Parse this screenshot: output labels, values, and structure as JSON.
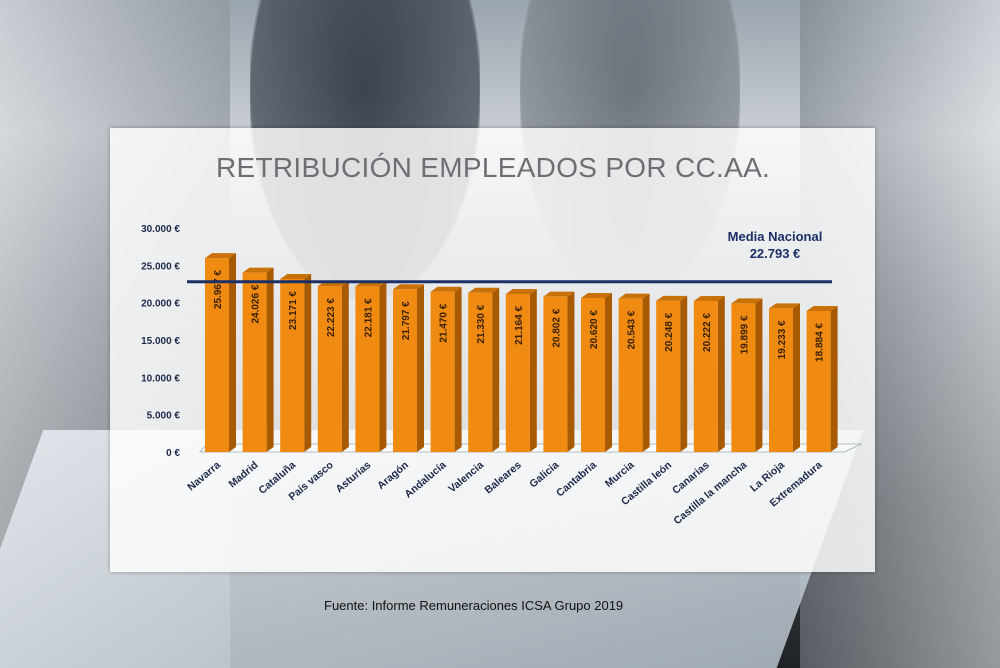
{
  "chart_data": {
    "type": "bar",
    "title": "RETRIBUCIÓN EMPLEADOS POR CC.AA.",
    "categories": [
      "Navarra",
      "Madrid",
      "Cataluña",
      "País vasco",
      "Asturias",
      "Aragón",
      "Andalucía",
      "Valencia",
      "Baleares",
      "Galicia",
      "Cantabria",
      "Murcia",
      "Castilla león",
      "Canarias",
      "Castilla la mancha",
      "La Rioja",
      "Extremadura"
    ],
    "values": [
      25967,
      24026,
      23171,
      22223,
      22181,
      21797,
      21470,
      21330,
      21164,
      20802,
      20620,
      20543,
      20248,
      20222,
      19899,
      19233,
      18884
    ],
    "value_labels": [
      "25.967 €",
      "24.026 €",
      "23.171 €",
      "22.223 €",
      "22.181 €",
      "21.797 €",
      "21.470 €",
      "21.330 €",
      "21.164 €",
      "20.802 €",
      "20.620 €",
      "20.543 €",
      "20.248 €",
      "20.222 €",
      "19.899 €",
      "19.233 €",
      "18.884 €"
    ],
    "ylim": [
      0,
      30000
    ],
    "yticks": [
      0,
      5000,
      10000,
      15000,
      20000,
      25000,
      30000
    ],
    "ytick_labels": [
      "0 €",
      "5.000 €",
      "10.000 €",
      "15.000 €",
      "20.000 €",
      "25.000 €",
      "30.000 €"
    ],
    "reference_line": {
      "label": "Media Nacional",
      "value": 22793,
      "value_label": "22.793 €"
    },
    "xlabel": "",
    "ylabel": "",
    "colors": {
      "bar": "#f08a10",
      "bar_side": "#a85a00",
      "bar_top": "#c9720a",
      "line": "#1c2f66"
    }
  },
  "source": "Fuente: Informe Remuneraciones ICSA Grupo  2019"
}
